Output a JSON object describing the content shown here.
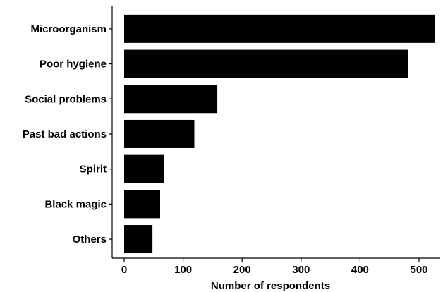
{
  "chart_data": {
    "type": "bar",
    "orientation": "horizontal",
    "categories": [
      "Microorganism",
      "Poor hygiene",
      "Social problems",
      "Past bad actions",
      "Spirit",
      "Black magic",
      "Others"
    ],
    "values": [
      527,
      481,
      158,
      119,
      68,
      61,
      48
    ],
    "xlabel": "Number of respondents",
    "ylabel": "",
    "xlim": [
      -20,
      540
    ],
    "xticks": [
      0,
      100,
      200,
      300,
      400,
      500
    ],
    "xtick_labels": [
      "0",
      "100",
      "200",
      "300",
      "400",
      "500"
    ],
    "grid": false,
    "legend": "none",
    "colors": {
      "bar": "#000000",
      "axis": "#000000",
      "background": "#ffffff"
    }
  }
}
